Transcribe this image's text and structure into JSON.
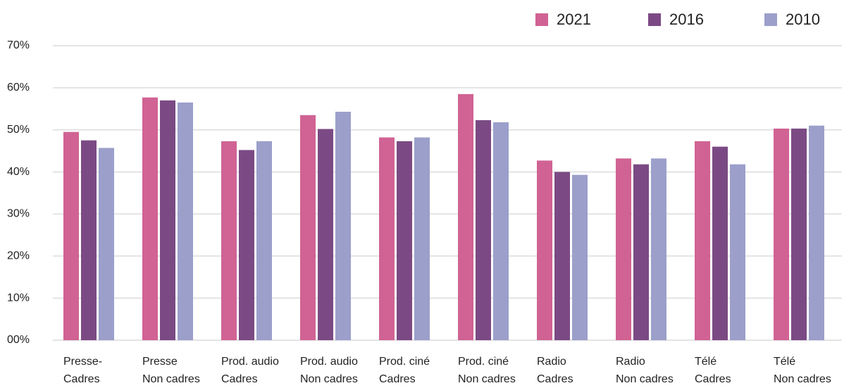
{
  "chart_data": {
    "type": "bar",
    "categories": [
      [
        "Presse-",
        "Cadres"
      ],
      [
        "Presse",
        "Non cadres"
      ],
      [
        "Prod. audio",
        "Cadres"
      ],
      [
        "Prod. audio",
        "Non cadres"
      ],
      [
        "Prod. ciné",
        "Cadres"
      ],
      [
        "Prod. ciné",
        "Non cadres"
      ],
      [
        "Radio",
        "Cadres"
      ],
      [
        "Radio",
        "Non cadres"
      ],
      [
        "Télé",
        "Cadres"
      ],
      [
        "Télé",
        "Non cadres"
      ]
    ],
    "series": [
      {
        "name": "2021",
        "color": "#d06394",
        "values": [
          49.5,
          57.7,
          47.3,
          53.5,
          48.2,
          58.5,
          42.7,
          43.2,
          47.3,
          50.3
        ]
      },
      {
        "name": "2016",
        "color": "#7b4a84",
        "values": [
          47.5,
          57.0,
          45.2,
          50.2,
          47.3,
          52.3,
          40.0,
          41.8,
          46.0,
          50.3
        ]
      },
      {
        "name": "2010",
        "color": "#9b9fca",
        "values": [
          45.7,
          56.5,
          47.3,
          54.3,
          48.2,
          51.8,
          39.3,
          43.2,
          41.8,
          51.0
        ]
      }
    ],
    "ylim": [
      0,
      70
    ],
    "yticks": [
      {
        "value": 0,
        "label": "00%"
      },
      {
        "value": 10,
        "label": "10%"
      },
      {
        "value": 20,
        "label": "20%"
      },
      {
        "value": 30,
        "label": "30%"
      },
      {
        "value": 40,
        "label": "40%"
      },
      {
        "value": 50,
        "label": "50%"
      },
      {
        "value": 60,
        "label": "60%"
      },
      {
        "value": 70,
        "label": "70%"
      }
    ],
    "grid": true,
    "legend": "top-right"
  }
}
